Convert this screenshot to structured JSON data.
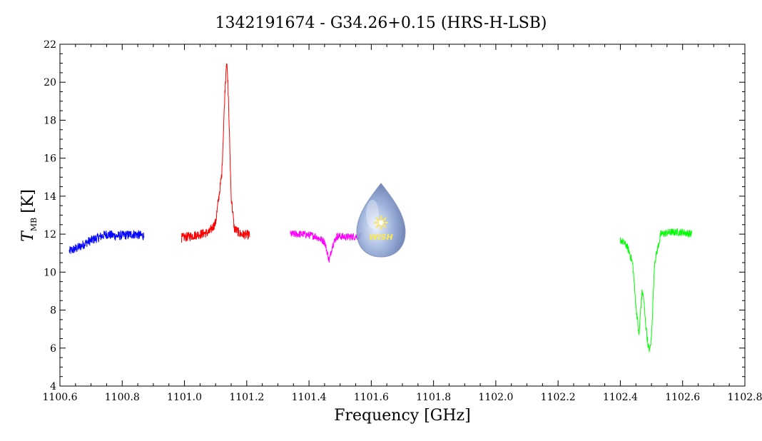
{
  "chart_data": {
    "type": "line",
    "title": "1342191674 - G34.26+0.15 (HRS-H-LSB)",
    "xlabel": "Frequency [GHz]",
    "ylabel_main": "T",
    "ylabel_sub": "MB",
    "ylabel_unit": "[K]",
    "xlim": [
      1100.6,
      1102.8
    ],
    "ylim": [
      4,
      22
    ],
    "x_ticks": [
      "1100.6",
      "1100.8",
      "1101.0",
      "1101.2",
      "1101.4",
      "1101.6",
      "1101.8",
      "1102.0",
      "1102.2",
      "1102.4",
      "1102.6",
      "1102.8"
    ],
    "y_ticks": [
      "4",
      "6",
      "8",
      "10",
      "12",
      "14",
      "16",
      "18",
      "20",
      "22"
    ],
    "grid": false,
    "series": [
      {
        "color": "#0000ff",
        "x": [
          1100.63,
          1100.66,
          1100.69,
          1100.72,
          1100.75,
          1100.78,
          1100.81,
          1100.84,
          1100.87
        ],
        "y": [
          11.1,
          11.3,
          11.6,
          11.8,
          12.0,
          11.9,
          11.95,
          12.0,
          11.9
        ],
        "noise": 0.25
      },
      {
        "color": "#ff0000",
        "x": [
          1100.99,
          1101.02,
          1101.05,
          1101.08,
          1101.1,
          1101.12,
          1101.13,
          1101.135,
          1101.14,
          1101.15,
          1101.16,
          1101.18,
          1101.21
        ],
        "y": [
          11.8,
          11.9,
          12.0,
          12.1,
          12.6,
          15.2,
          19.5,
          21.2,
          19.8,
          14.0,
          12.3,
          12.0,
          11.95
        ],
        "noise": 0.25
      },
      {
        "color": "#ff00ff",
        "x": [
          1101.34,
          1101.38,
          1101.42,
          1101.45,
          1101.465,
          1101.475,
          1101.49,
          1101.52,
          1101.57
        ],
        "y": [
          12.0,
          12.0,
          11.9,
          11.6,
          10.6,
          11.4,
          11.9,
          11.85,
          11.9
        ],
        "noise": 0.2
      },
      {
        "color": "#00ff00",
        "x": [
          1102.4,
          1102.42,
          1102.43,
          1102.44,
          1102.45,
          1102.455,
          1102.46,
          1102.465,
          1102.47,
          1102.475,
          1102.48,
          1102.49,
          1102.495,
          1102.5,
          1102.51,
          1102.53,
          1102.56,
          1102.6,
          1102.63
        ],
        "y": [
          11.7,
          11.4,
          11.0,
          10.4,
          8.2,
          7.5,
          6.6,
          8.0,
          9.0,
          8.6,
          7.5,
          6.0,
          5.9,
          6.6,
          10.5,
          12.0,
          12.1,
          12.1,
          12.0
        ],
        "noise": 0.2
      }
    ]
  },
  "logo": {
    "text": "WISH"
  }
}
